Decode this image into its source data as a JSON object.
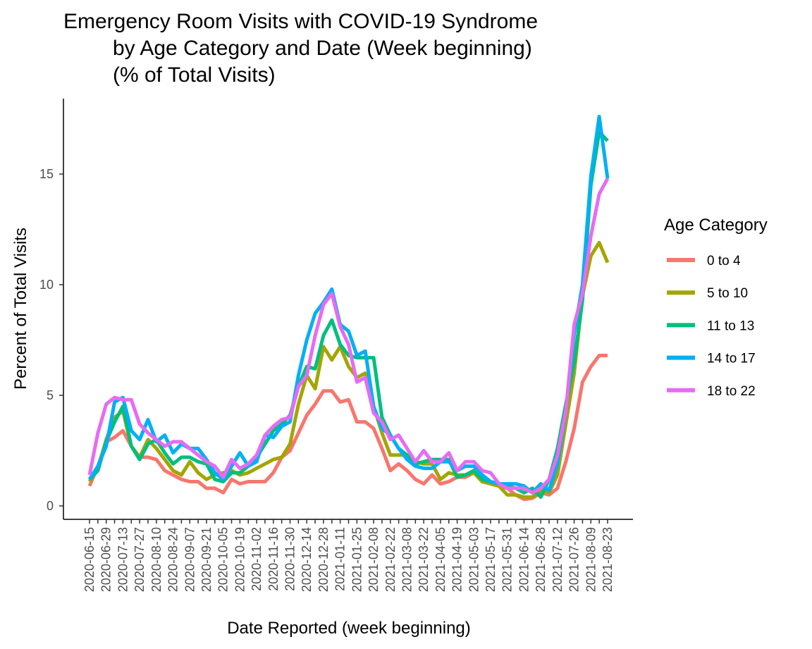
{
  "chart_data": {
    "type": "line",
    "title": [
      "Emergency Room Visits with COVID-19 Syndrome",
      "by Age Category and Date (Week beginning)",
      "(% of Total Visits)"
    ],
    "xlabel": "Date Reported (week beginning)",
    "ylabel": "Percent of Total Visits",
    "ylim": [
      -0.6,
      18.5
    ],
    "yticks": [
      0,
      5,
      10,
      15
    ],
    "grid": false,
    "legend": {
      "title": "Age Category",
      "position": "right"
    },
    "x_tick_labels": [
      "2020-06-15",
      "2020-06-29",
      "2020-07-13",
      "2020-07-27",
      "2020-08-10",
      "2020-08-24",
      "2020-09-07",
      "2020-09-21",
      "2020-10-05",
      "2020-10-19",
      "2020-11-02",
      "2020-11-16",
      "2020-11-30",
      "2020-12-14",
      "2020-12-28",
      "2021-01-11",
      "2021-01-25",
      "2021-02-08",
      "2021-02-22",
      "2021-03-08",
      "2021-03-22",
      "2021-04-05",
      "2021-04-19",
      "2021-05-03",
      "2021-05-17",
      "2021-05-31",
      "2021-06-14",
      "2021-06-28",
      "2021-07-12",
      "2021-07-26",
      "2021-08-09",
      "2021-08-23"
    ],
    "x": [
      "2020-06-15",
      "2020-06-22",
      "2020-06-29",
      "2020-07-06",
      "2020-07-13",
      "2020-07-20",
      "2020-07-27",
      "2020-08-03",
      "2020-08-10",
      "2020-08-17",
      "2020-08-24",
      "2020-08-31",
      "2020-09-07",
      "2020-09-14",
      "2020-09-21",
      "2020-09-28",
      "2020-10-05",
      "2020-10-12",
      "2020-10-19",
      "2020-10-26",
      "2020-11-02",
      "2020-11-09",
      "2020-11-16",
      "2020-11-23",
      "2020-11-30",
      "2020-12-07",
      "2020-12-14",
      "2020-12-21",
      "2020-12-28",
      "2021-01-04",
      "2021-01-11",
      "2021-01-18",
      "2021-01-25",
      "2021-02-01",
      "2021-02-08",
      "2021-02-15",
      "2021-02-22",
      "2021-03-01",
      "2021-03-08",
      "2021-03-15",
      "2021-03-22",
      "2021-03-29",
      "2021-04-05",
      "2021-04-12",
      "2021-04-19",
      "2021-04-26",
      "2021-05-03",
      "2021-05-10",
      "2021-05-17",
      "2021-05-24",
      "2021-05-31",
      "2021-06-07",
      "2021-06-14",
      "2021-06-21",
      "2021-06-28",
      "2021-07-05",
      "2021-07-12",
      "2021-07-19",
      "2021-07-26",
      "2021-08-02",
      "2021-08-09",
      "2021-08-16",
      "2021-08-23"
    ],
    "series": [
      {
        "name": "0 to 4",
        "color": "#F8766D",
        "values": [
          0.9,
          1.8,
          2.9,
          3.1,
          3.4,
          2.7,
          2.2,
          2.2,
          2.1,
          1.6,
          1.4,
          1.2,
          1.1,
          1.1,
          0.8,
          0.8,
          0.6,
          1.2,
          1.0,
          1.1,
          1.1,
          1.1,
          1.5,
          2.2,
          2.5,
          3.3,
          4.1,
          4.6,
          5.2,
          5.2,
          4.7,
          4.8,
          3.8,
          3.8,
          3.5,
          2.6,
          1.6,
          1.9,
          1.6,
          1.2,
          1.0,
          1.4,
          1.0,
          1.1,
          1.3,
          1.3,
          1.5,
          1.1,
          1.0,
          0.9,
          0.8,
          0.5,
          0.3,
          0.35,
          0.6,
          0.5,
          0.8,
          2.0,
          3.5,
          5.6,
          6.3,
          6.8,
          6.8
        ]
      },
      {
        "name": "5 to 10",
        "color": "#A3A500",
        "values": [
          1.1,
          1.7,
          3.0,
          4.0,
          4.3,
          2.7,
          2.2,
          3.0,
          2.6,
          2.1,
          1.6,
          1.4,
          2.0,
          1.5,
          1.2,
          1.4,
          1.5,
          1.6,
          1.4,
          1.5,
          1.7,
          1.9,
          2.1,
          2.2,
          2.8,
          4.6,
          5.9,
          5.3,
          7.2,
          6.6,
          7.2,
          6.3,
          5.8,
          6.0,
          4.5,
          3.3,
          2.3,
          2.3,
          2.3,
          2.0,
          1.9,
          1.9,
          1.2,
          1.5,
          1.4,
          1.4,
          1.5,
          1.1,
          1.0,
          0.9,
          0.5,
          0.5,
          0.4,
          0.4,
          0.7,
          0.6,
          1.4,
          3.7,
          6.0,
          9.5,
          11.3,
          11.9,
          11.0
        ]
      },
      {
        "name": "11 to 13",
        "color": "#00BF7D",
        "values": [
          1.2,
          1.6,
          2.9,
          3.8,
          4.5,
          2.7,
          2.1,
          2.8,
          3.0,
          2.4,
          1.9,
          2.2,
          2.2,
          2.0,
          1.9,
          1.2,
          1.1,
          1.5,
          1.5,
          1.8,
          2.2,
          2.8,
          3.4,
          3.7,
          4.1,
          5.4,
          6.3,
          6.2,
          7.7,
          8.4,
          7.3,
          6.8,
          6.7,
          6.7,
          6.7,
          4.0,
          3.2,
          2.6,
          2.3,
          1.9,
          2.0,
          2.1,
          2.1,
          2.1,
          1.3,
          1.4,
          1.6,
          1.2,
          1.1,
          1.0,
          0.9,
          0.8,
          0.6,
          0.8,
          0.4,
          1.2,
          2.6,
          4.6,
          6.5,
          9.3,
          14.5,
          16.9,
          16.5
        ]
      },
      {
        "name": "14 to 17",
        "color": "#00B0F6",
        "values": [
          1.2,
          1.8,
          2.7,
          4.7,
          4.9,
          3.4,
          3.0,
          3.9,
          2.9,
          3.2,
          2.4,
          2.8,
          2.6,
          2.6,
          2.1,
          1.5,
          1.2,
          1.8,
          2.4,
          1.8,
          2.0,
          3.2,
          3.1,
          3.6,
          3.8,
          5.9,
          7.5,
          8.7,
          9.2,
          9.8,
          8.2,
          7.9,
          6.8,
          7.0,
          4.5,
          3.5,
          3.2,
          2.6,
          2.1,
          1.8,
          1.7,
          1.7,
          2.0,
          2.0,
          1.6,
          1.8,
          1.8,
          1.4,
          1.1,
          1.0,
          1.0,
          1.0,
          0.9,
          0.6,
          1.0,
          0.7,
          1.9,
          4.3,
          7.8,
          10.0,
          14.9,
          17.6,
          14.8
        ]
      },
      {
        "name": "18 to 22",
        "color": "#E76BF3",
        "values": [
          1.4,
          3.3,
          4.6,
          4.9,
          4.8,
          4.8,
          3.7,
          3.3,
          3.0,
          2.7,
          2.9,
          2.9,
          2.6,
          2.3,
          2.0,
          1.8,
          1.3,
          2.1,
          1.7,
          1.9,
          2.3,
          3.2,
          3.6,
          3.9,
          4.0,
          5.4,
          5.9,
          7.7,
          9.1,
          9.6,
          8.1,
          7.3,
          5.6,
          5.8,
          4.2,
          3.8,
          3.0,
          3.2,
          2.6,
          2.0,
          2.5,
          2.0,
          2.0,
          2.4,
          1.6,
          2.0,
          2.0,
          1.6,
          1.5,
          1.0,
          0.8,
          0.8,
          0.8,
          0.6,
          0.8,
          1.2,
          2.3,
          4.3,
          8.2,
          9.6,
          12.2,
          14.1,
          14.8
        ]
      }
    ]
  }
}
